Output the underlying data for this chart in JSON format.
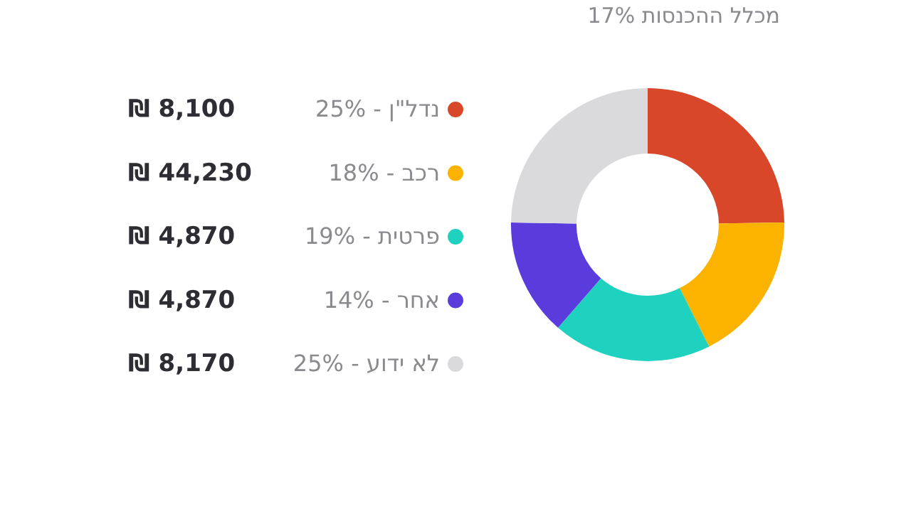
{
  "chart_data": {
    "type": "donut",
    "title": "17% מכלל ההכנסות",
    "categories": [
      "נדל\"ן - 25%",
      "רכב - 18%",
      "פרטית - 19%",
      "אחר - 14%",
      "לא ידוע - 25%"
    ],
    "values": [
      25,
      18,
      19,
      14,
      25
    ],
    "colors": [
      "#d8472a",
      "#fbb300",
      "#1fd2bf",
      "#5a3bdc",
      "#dadadd"
    ],
    "annotations": [
      "₪ 8,100",
      "₪ 44,230",
      "₪ 4,870",
      "₪ 4,870",
      "₪ 8,170"
    ],
    "legend": "left"
  }
}
